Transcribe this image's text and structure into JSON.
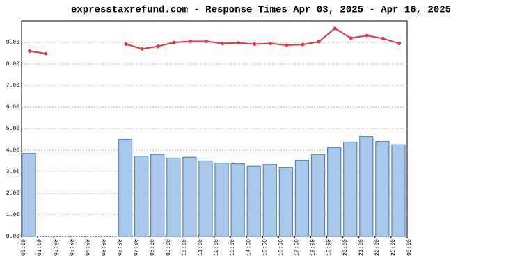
{
  "chart_data": {
    "type": "bar",
    "title": "expresstaxrefund.com - Response Times Apr 03, 2025 - Apr 16, 2025",
    "categories": [
      "00:00",
      "01:00",
      "02:00",
      "03:00",
      "04:00",
      "05:00",
      "06:00",
      "07:00",
      "08:00",
      "09:00",
      "10:00",
      "11:00",
      "12:00",
      "13:00",
      "14:00",
      "15:00",
      "16:00",
      "17:00",
      "18:00",
      "19:00",
      "20:00",
      "21:00",
      "22:00",
      "23:00"
    ],
    "x_end_label": "00:00",
    "series": [
      {
        "type": "bar",
        "color": "#a8c8ec",
        "values": [
          3.85,
          null,
          null,
          null,
          null,
          null,
          4.5,
          3.72,
          3.8,
          3.63,
          3.67,
          3.5,
          3.4,
          3.37,
          3.25,
          3.33,
          3.18,
          3.53,
          3.8,
          4.12,
          4.37,
          4.63,
          4.4,
          4.25
        ]
      },
      {
        "type": "line",
        "color": "#e8343f",
        "values": [
          8.6,
          8.48,
          null,
          null,
          null,
          null,
          8.92,
          8.7,
          8.82,
          9.0,
          9.05,
          9.05,
          8.95,
          8.98,
          8.92,
          8.95,
          8.87,
          8.9,
          9.03,
          9.65,
          9.2,
          9.32,
          9.18,
          8.95
        ]
      }
    ],
    "ylim": [
      0,
      10
    ],
    "yticks": [
      {
        "value": 0,
        "label": "0.00"
      },
      {
        "value": 1,
        "label": "1.00"
      },
      {
        "value": 2,
        "label": "2.00"
      },
      {
        "value": 3,
        "label": "3.00"
      },
      {
        "value": 4,
        "label": "4.00"
      },
      {
        "value": 5,
        "label": "5.00"
      },
      {
        "value": 6,
        "label": "6.00"
      },
      {
        "value": 7,
        "label": "7.00"
      },
      {
        "value": 8,
        "label": "8.00"
      },
      {
        "value": 9,
        "label": "9.00"
      }
    ],
    "grid": true
  }
}
